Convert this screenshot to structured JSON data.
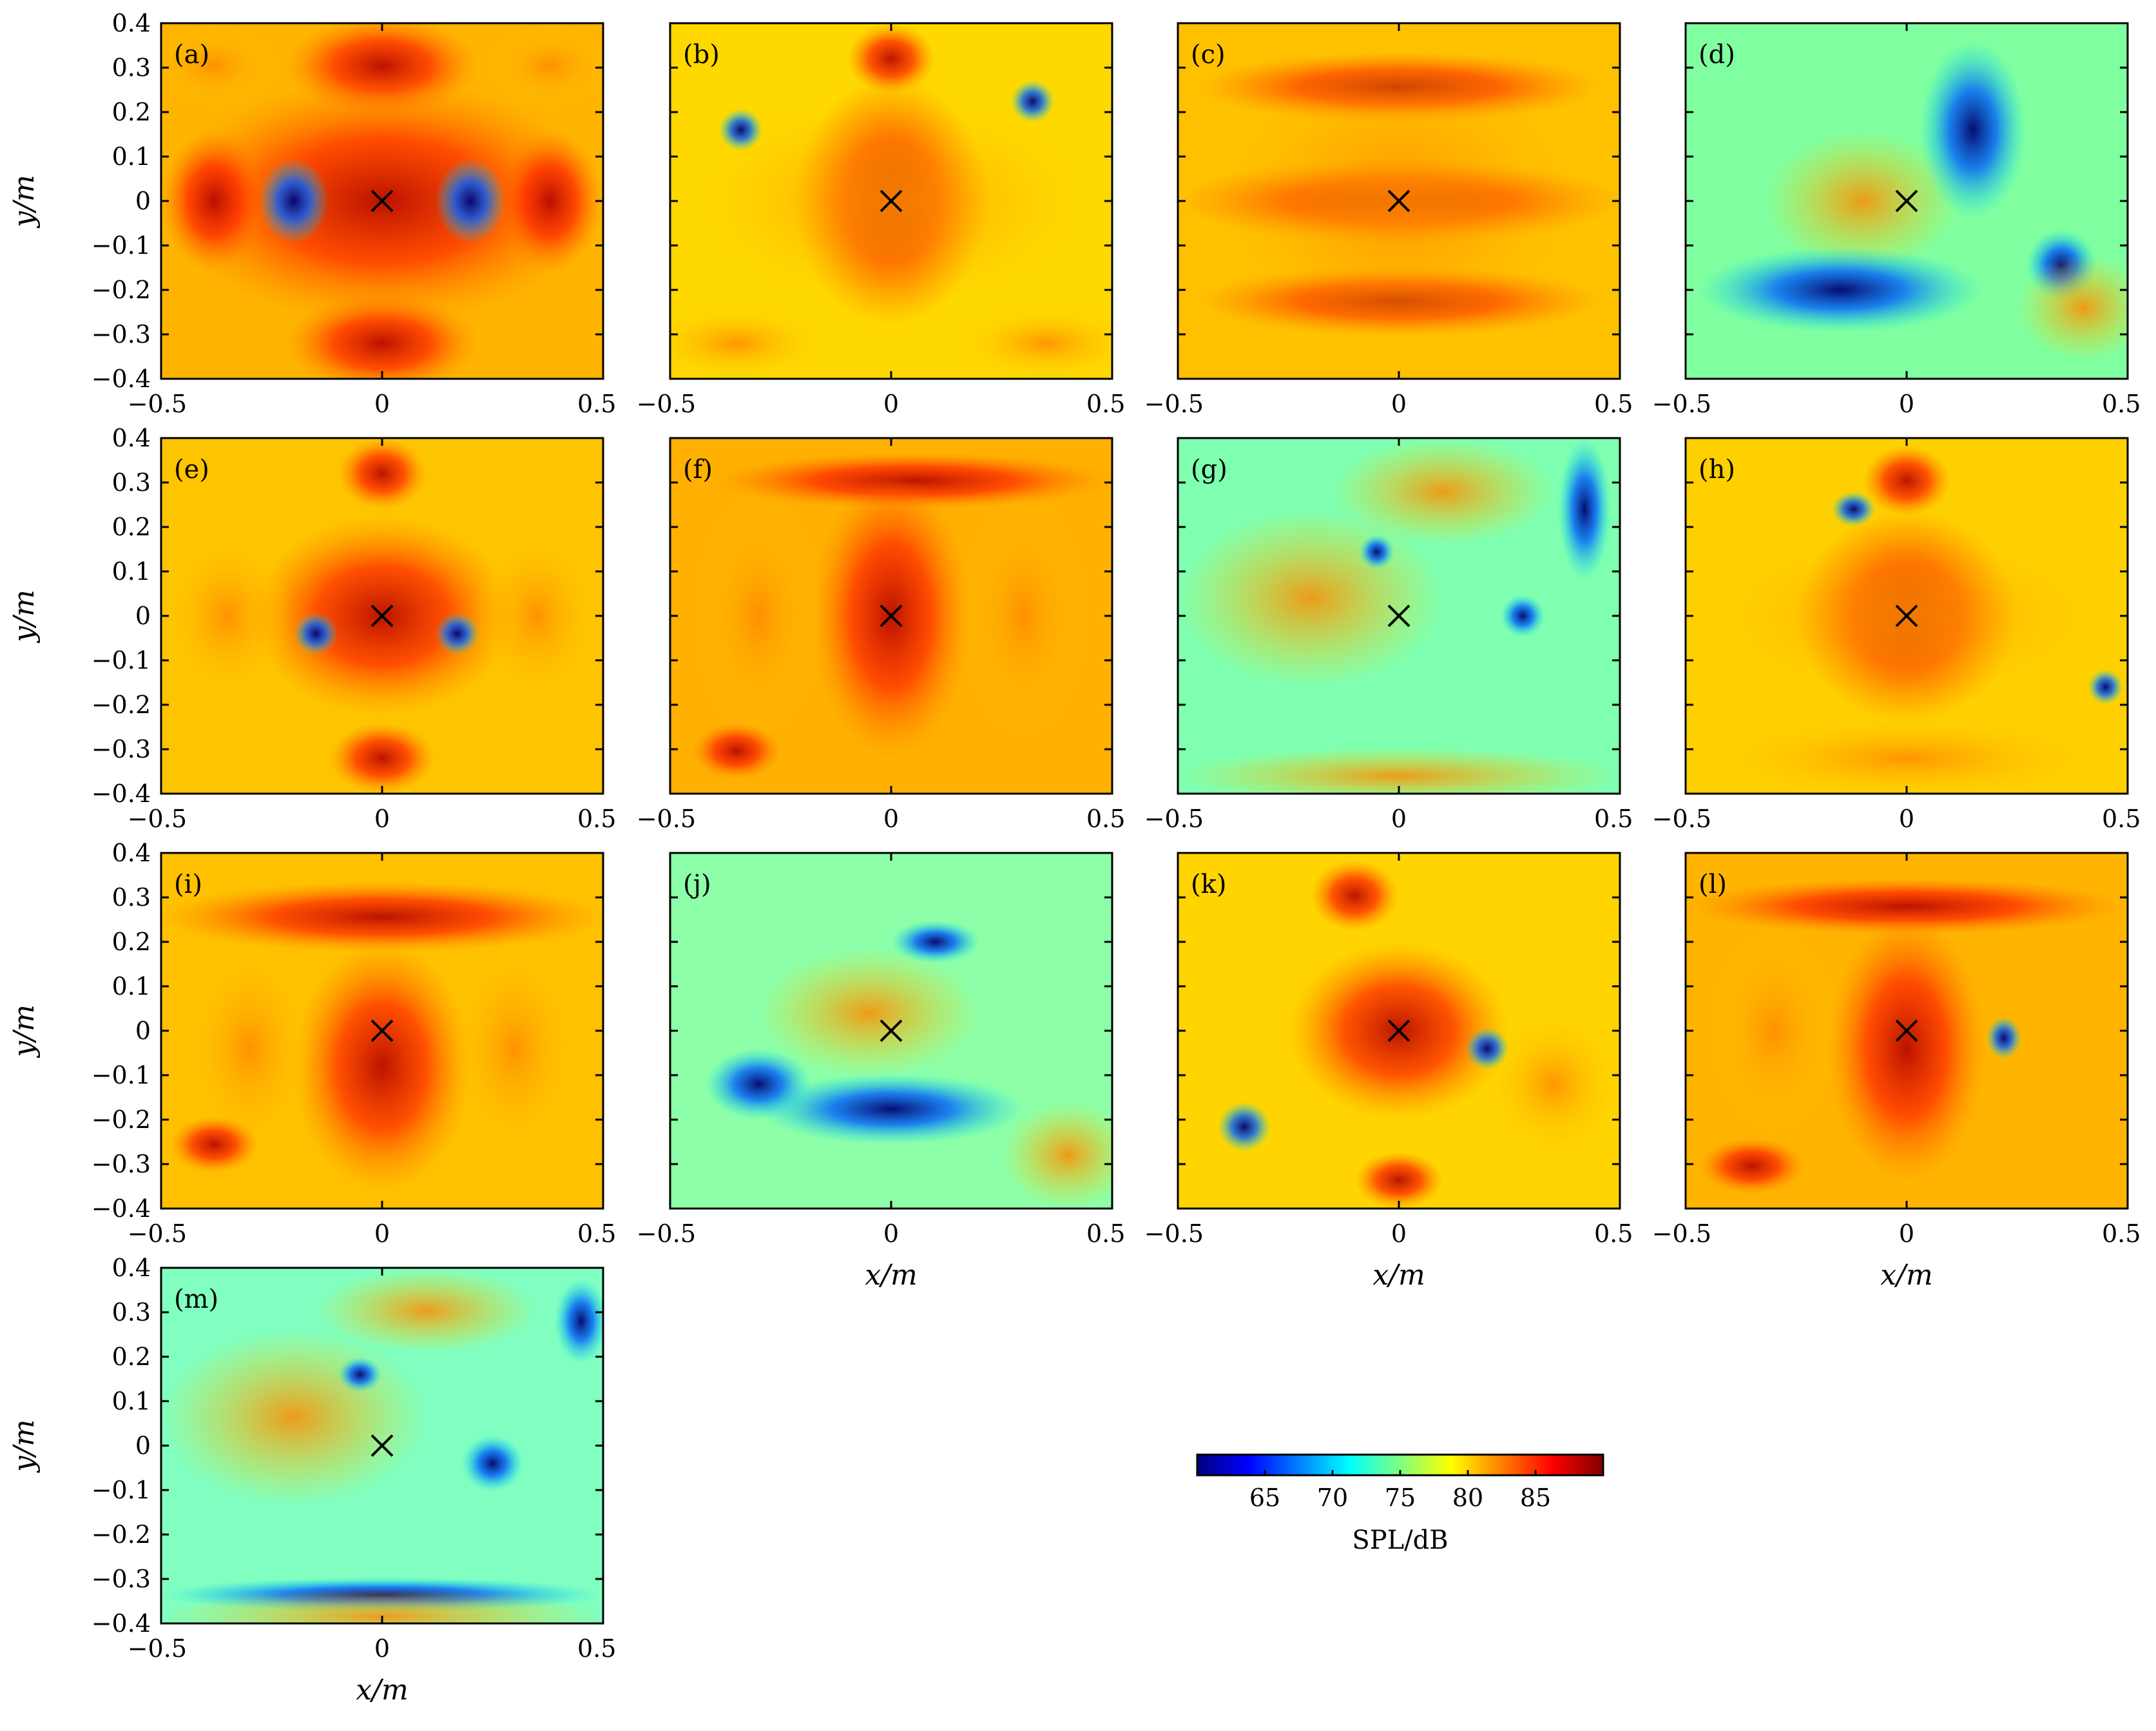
{
  "chart_data": {
    "type": "heatmap",
    "quantity": "SPL/dB",
    "xlabel": "x/m",
    "ylabel": "y/m",
    "xlim": [
      -0.5,
      0.5
    ],
    "ylim": [
      -0.4,
      0.4
    ],
    "x_ticks": [
      "−0.5",
      "0",
      "0.5"
    ],
    "y_ticks": [
      "0.4",
      "0.3",
      "0.2",
      "0.1",
      "0",
      "−0.1",
      "−0.2",
      "−0.3",
      "−0.4"
    ],
    "colorbar": {
      "label": "SPL/dB",
      "range": [
        60,
        90
      ],
      "ticks": [
        "65",
        "70",
        "75",
        "80",
        "85"
      ],
      "colormap": "jet",
      "colors": [
        "#00007f",
        "#0000ff",
        "#007fff",
        "#00ffff",
        "#7fff7f",
        "#ffff00",
        "#ff7f00",
        "#ff0000",
        "#7f0000"
      ]
    },
    "source_marker": {
      "x": 0,
      "y": 0,
      "symbol": "×"
    },
    "panels": [
      {
        "label": "(a)"
      },
      {
        "label": "(b)"
      },
      {
        "label": "(c)"
      },
      {
        "label": "(d)"
      },
      {
        "label": "(e)"
      },
      {
        "label": "(f)"
      },
      {
        "label": "(g)"
      },
      {
        "label": "(h)"
      },
      {
        "label": "(i)"
      },
      {
        "label": "(j)"
      },
      {
        "label": "(k)"
      },
      {
        "label": "(l)"
      },
      {
        "label": "(m)"
      }
    ]
  }
}
